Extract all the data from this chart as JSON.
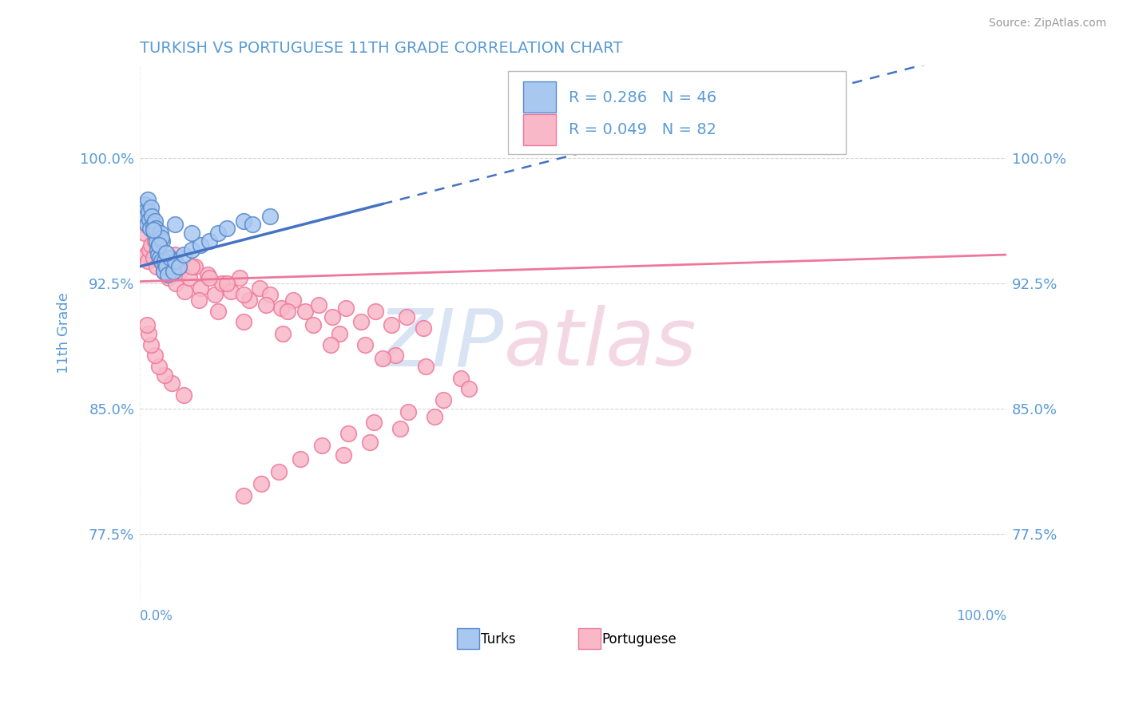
{
  "title": "TURKISH VS PORTUGUESE 11TH GRADE CORRELATION CHART",
  "source": "Source: ZipAtlas.com",
  "ylabel": "11th Grade",
  "y_tick_labels": [
    "77.5%",
    "85.0%",
    "92.5%",
    "100.0%"
  ],
  "y_tick_values": [
    0.775,
    0.85,
    0.925,
    1.0
  ],
  "x_lim": [
    0.0,
    1.0
  ],
  "y_lim": [
    0.735,
    1.055
  ],
  "legend_text_blue": "R = 0.286   N = 46",
  "legend_text_pink": "R = 0.049   N = 82",
  "legend_label_blue": "Turks",
  "legend_label_pink": "Portuguese",
  "blue_fill": "#A8C8F0",
  "pink_fill": "#F8B8C8",
  "blue_edge": "#5588CC",
  "pink_edge": "#EE7799",
  "blue_line": "#4472C4",
  "pink_line": "#EE7799",
  "title_color": "#5B9BD5",
  "label_color": "#5B9BD5",
  "legend_text_color": "#5B9BD5",
  "grid_color": "#CCCCCC",
  "watermark_zip_color": "#D0DCF0",
  "watermark_atlas_color": "#E8C8D8",
  "turks_x": [
    0.003,
    0.005,
    0.006,
    0.007,
    0.008,
    0.009,
    0.01,
    0.011,
    0.012,
    0.013,
    0.014,
    0.015,
    0.016,
    0.017,
    0.018,
    0.019,
    0.02,
    0.021,
    0.022,
    0.023,
    0.024,
    0.025,
    0.026,
    0.027,
    0.028,
    0.03,
    0.032,
    0.035,
    0.038,
    0.04,
    0.045,
    0.05,
    0.06,
    0.07,
    0.08,
    0.09,
    0.1,
    0.12,
    0.13,
    0.15,
    0.06,
    0.04,
    0.025,
    0.015,
    0.022,
    0.03
  ],
  "turks_y": [
    0.97,
    0.972,
    0.968,
    0.965,
    0.96,
    0.975,
    0.968,
    0.963,
    0.958,
    0.97,
    0.965,
    0.96,
    0.955,
    0.962,
    0.958,
    0.95,
    0.945,
    0.942,
    0.948,
    0.94,
    0.955,
    0.938,
    0.95,
    0.932,
    0.938,
    0.935,
    0.93,
    0.94,
    0.932,
    0.938,
    0.935,
    0.942,
    0.945,
    0.948,
    0.95,
    0.955,
    0.958,
    0.962,
    0.96,
    0.965,
    0.955,
    0.96,
    0.952,
    0.957,
    0.948,
    0.943
  ],
  "port_x": [
    0.003,
    0.005,
    0.007,
    0.009,
    0.011,
    0.013,
    0.015,
    0.017,
    0.019,
    0.021,
    0.024,
    0.027,
    0.03,
    0.033,
    0.037,
    0.041,
    0.046,
    0.051,
    0.057,
    0.063,
    0.07,
    0.078,
    0.086,
    0.095,
    0.105,
    0.115,
    0.126,
    0.138,
    0.15,
    0.163,
    0.177,
    0.191,
    0.206,
    0.222,
    0.238,
    0.255,
    0.272,
    0.29,
    0.308,
    0.327,
    0.02,
    0.04,
    0.06,
    0.08,
    0.1,
    0.12,
    0.145,
    0.17,
    0.2,
    0.23,
    0.26,
    0.295,
    0.33,
    0.37,
    0.28,
    0.22,
    0.165,
    0.12,
    0.09,
    0.068,
    0.05,
    0.037,
    0.028,
    0.022,
    0.017,
    0.013,
    0.01,
    0.008,
    0.38,
    0.35,
    0.31,
    0.27,
    0.24,
    0.21,
    0.185,
    0.16,
    0.14,
    0.12,
    0.34,
    0.3,
    0.265,
    0.235
  ],
  "port_y": [
    0.96,
    0.955,
    0.942,
    0.938,
    0.945,
    0.948,
    0.94,
    0.95,
    0.935,
    0.945,
    0.938,
    0.932,
    0.94,
    0.928,
    0.935,
    0.925,
    0.932,
    0.92,
    0.928,
    0.935,
    0.922,
    0.93,
    0.918,
    0.925,
    0.92,
    0.928,
    0.915,
    0.922,
    0.918,
    0.91,
    0.915,
    0.908,
    0.912,
    0.905,
    0.91,
    0.902,
    0.908,
    0.9,
    0.905,
    0.898,
    0.95,
    0.942,
    0.935,
    0.928,
    0.925,
    0.918,
    0.912,
    0.908,
    0.9,
    0.895,
    0.888,
    0.882,
    0.875,
    0.868,
    0.88,
    0.888,
    0.895,
    0.902,
    0.908,
    0.915,
    0.858,
    0.865,
    0.87,
    0.875,
    0.882,
    0.888,
    0.895,
    0.9,
    0.862,
    0.855,
    0.848,
    0.842,
    0.835,
    0.828,
    0.82,
    0.812,
    0.805,
    0.798,
    0.845,
    0.838,
    0.83,
    0.822
  ]
}
